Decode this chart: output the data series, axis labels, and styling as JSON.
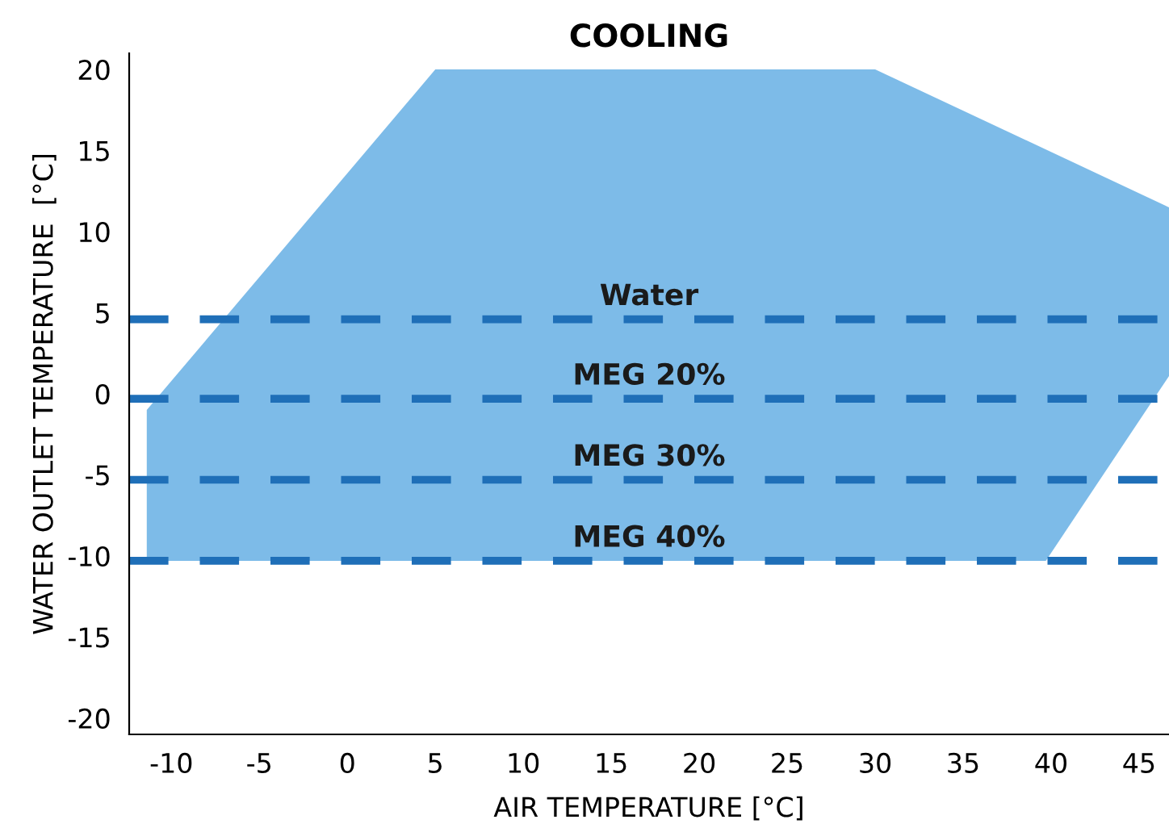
{
  "chart_data": {
    "type": "area",
    "title": "COOLING",
    "xlabel": "AIR TEMPERATURE [°C]",
    "ylabel": "WATER OUTLET TEMPERATURE  [°C]",
    "series": [
      {
        "color": "#7dbbe8",
        "x": [
          -11.4,
          5,
          30,
          46.7,
          46.7,
          39.7,
          -11.4
        ],
        "values": [
          -1,
          20,
          20,
          11.5,
          1.1,
          -10.3,
          -10.3
        ]
      }
    ],
    "ref_lines": [
      {
        "axis": "y",
        "value": 4.6,
        "label": "Water",
        "color": "#1f6fb8",
        "line_style": "dashed"
      },
      {
        "axis": "y",
        "value": -0.3,
        "label": "MEG 20%",
        "color": "#1f6fb8",
        "line_style": "dashed"
      },
      {
        "axis": "y",
        "value": -5.3,
        "label": "MEG 30%",
        "color": "#1f6fb8",
        "line_style": "dashed"
      },
      {
        "axis": "y",
        "value": -10.3,
        "label": "MEG 40%",
        "color": "#1f6fb8",
        "line_style": "dashed"
      }
    ],
    "xlim": [
      -12.4,
      46.7
    ],
    "ylim": [
      -21,
      21
    ],
    "xticks": [
      -10,
      -5,
      0,
      5,
      10,
      15,
      20,
      25,
      30,
      35,
      40,
      45
    ],
    "yticks": [
      -20,
      -15,
      -10,
      -5,
      0,
      5,
      10,
      15,
      20
    ],
    "grid": false,
    "legend": false
  }
}
